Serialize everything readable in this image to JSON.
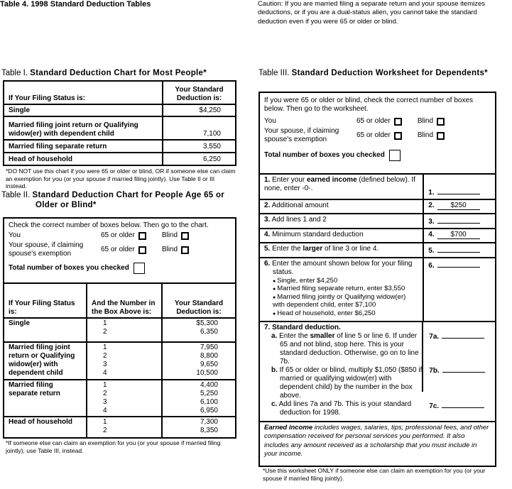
{
  "title": "Table 4. 1998 Standard Deduction Tables",
  "caution": "Caution: If you are married filing a separate return and your spouse itemizes deductions, or if you are a dual-status alien, you cannot take the standard deduction even if you were 65 or older or blind.",
  "t1": {
    "prefix": "Table I.",
    "title": "Standard Deduction Chart for Most People*",
    "h1": "If Your Filing Status is:",
    "h2": "Your Standard Deduction is:",
    "rows": [
      {
        "s": "Single",
        "v": "$4,250"
      },
      {
        "s": "Married filing joint return or Qualifying widow(er) with dependent child",
        "v": "7,100"
      },
      {
        "s": "Married filing separate return",
        "v": "3,550"
      },
      {
        "s": "Head of household",
        "v": "6,250"
      }
    ],
    "footnote": "*DO NOT use this chart if you were 65 or older or blind, OR if someone else can claim an exemption for you (or your spouse if married filing jointly). Use Table II or III instead."
  },
  "checks": {
    "you": "You",
    "spouse": "Your spouse, if claiming spouse's exemption",
    "older": "65 or older",
    "blind": "Blind",
    "total": "Total number of boxes you checked"
  },
  "t2": {
    "prefix": "Table II.",
    "title": "Standard Deduction Chart for People Age 65 or Older or Blind*",
    "intro": "Check the correct number of boxes below. Then go to the chart.",
    "h1": "If Your Filing Status is:",
    "h2": "And the Number in the Box Above is:",
    "h3": "Your Standard Deduction is:",
    "groups": [
      {
        "s": "Single",
        "n": [
          "1",
          "2"
        ],
        "v": [
          "$5,300",
          "6,350"
        ]
      },
      {
        "s": "Married filing joint return or Qualifying widow(er) with dependent child",
        "n": [
          "1",
          "2",
          "3",
          "4"
        ],
        "v": [
          "7,950",
          "8,800",
          "9,650",
          "10,500"
        ]
      },
      {
        "s": "Married filing separate return",
        "n": [
          "1",
          "2",
          "3",
          "4"
        ],
        "v": [
          "4,400",
          "5,250",
          "6,100",
          "6,950"
        ]
      },
      {
        "s": "Head of household",
        "n": [
          "1",
          "2"
        ],
        "v": [
          "7,300",
          "8,350"
        ]
      }
    ],
    "footnote": "*If someone else can claim an exemption for you (or your spouse if married filing jointly), use Table III, instead."
  },
  "t3": {
    "prefix": "Table III.",
    "title": "Standard Deduction Worksheet for Dependents*",
    "intro": "If you were 65 or older or blind, check the correct number of boxes below. Then go to the worksheet.",
    "l1a": "Enter your ",
    "l1b": "earned income",
    "l1c": " (defined below). If none, enter -0-.",
    "l2": "Additional amount",
    "l2v": "$250",
    "l3": "Add lines 1 and 2",
    "l4": "Minimum standard deduction",
    "l4v": "$700",
    "l5a": "Enter the ",
    "l5b": "larger",
    "l5c": " of line 3 or line 4.",
    "l6": "Enter the amount shown below for your filing status.",
    "l6items": [
      "Single, enter $4,250",
      "Married filing separate return, enter $3,550",
      "Married filing jointly or Qualifying widow(er) with dependent child, enter $7,100",
      "Head of household, enter $6,250"
    ],
    "l7": "Standard deduction.",
    "l7a1": "Enter the ",
    "l7a2": "smaller",
    "l7a3": " of line 5 or line 6. If under 65 and not blind, stop here. This is your standard deduction. Otherwise, go on to line 7b.",
    "l7b": "If 65 or older or blind, multiply $1,050 ($850 if married or qualifying widow(er) with dependent child) by the number in the box above.",
    "l7c": "Add lines 7a and 7b. This is your standard deduction for 1998.",
    "nums": [
      "1.",
      "2.",
      "3.",
      "4.",
      "5.",
      "6.",
      "7.",
      "a.",
      "b.",
      "c.",
      "7a.",
      "7b.",
      "7c."
    ],
    "earned_b": "Earned income",
    "earned": " includes wages, salaries, tips, professional fees, and other compensation received for personal services you performed. It also includes any amount received as a scholarship that you must include in your income.",
    "footnote": "*Use this worksheet ONLY if someone else can claim an exemption for you (or your spouse if married filing jointly)."
  }
}
